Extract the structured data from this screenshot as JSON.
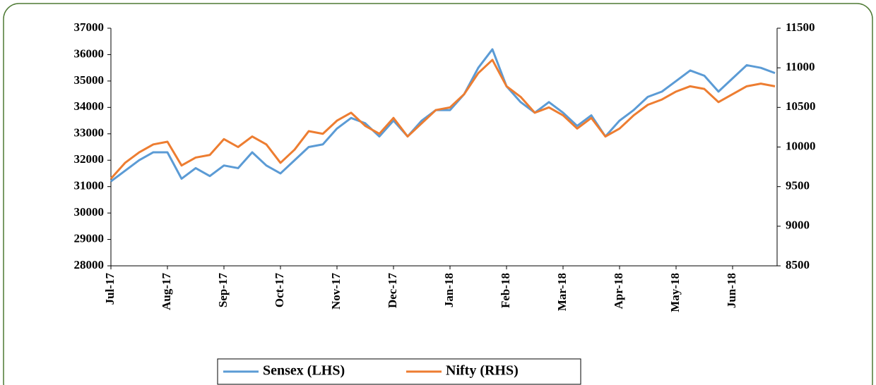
{
  "chart_data": {
    "type": "line",
    "categories": [
      "Jul-17",
      null,
      null,
      null,
      "Aug-17",
      null,
      null,
      null,
      "Sep-17",
      null,
      null,
      null,
      "Oct-17",
      null,
      null,
      null,
      "Nov-17",
      null,
      null,
      null,
      "Dec-17",
      null,
      null,
      null,
      "Jan-18",
      null,
      null,
      null,
      "Feb-18",
      null,
      null,
      null,
      "Mar-18",
      null,
      null,
      null,
      "Apr-18",
      null,
      null,
      null,
      "May-18",
      null,
      null,
      null,
      "Jun-18",
      null,
      null,
      null
    ],
    "series": [
      {
        "name": "Sensex (LHS)",
        "color": "#5b9bd5",
        "axis": "y",
        "values": [
          31200,
          31600,
          32000,
          32300,
          32300,
          31300,
          31700,
          31400,
          31800,
          31700,
          32300,
          31800,
          31500,
          32000,
          32500,
          32600,
          33200,
          33600,
          33400,
          32900,
          33500,
          32900,
          33500,
          33900,
          33900,
          34500,
          35500,
          36200,
          34800,
          34200,
          33800,
          34200,
          33800,
          33300,
          33700,
          32900,
          33500,
          33900,
          34400,
          34600,
          35000,
          35400,
          35200,
          34600,
          35100,
          35600,
          35500,
          35300
        ]
      },
      {
        "name": "Nifty (RHS)",
        "color": "#ed7d31",
        "axis": "y2",
        "values": [
          9600,
          9800,
          9933,
          10033,
          10067,
          9767,
          9867,
          9900,
          10100,
          10000,
          10133,
          10033,
          9800,
          9967,
          10200,
          10167,
          10333,
          10433,
          10267,
          10167,
          10367,
          10133,
          10300,
          10467,
          10500,
          10667,
          10933,
          11100,
          10767,
          10633,
          10433,
          10500,
          10400,
          10233,
          10367,
          10133,
          10233,
          10400,
          10533,
          10600,
          10700,
          10767,
          10733,
          10567,
          10667,
          10767,
          10800,
          10767
        ]
      }
    ],
    "ylim": [
      28000,
      37000
    ],
    "yticks": [
      28000,
      29000,
      30000,
      31000,
      32000,
      33000,
      34000,
      35000,
      36000,
      37000
    ],
    "y2lim": [
      8500,
      11500
    ],
    "y2ticks": [
      8500,
      9000,
      9500,
      10000,
      10500,
      11000,
      11500
    ]
  }
}
